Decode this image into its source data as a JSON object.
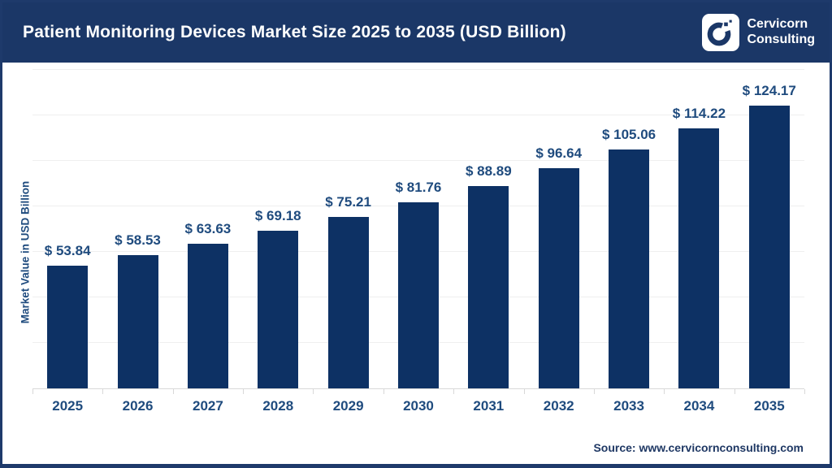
{
  "header": {
    "title": "Patient Monitoring Devices Market Size 2025 to 2035 (USD Billion)",
    "brand": {
      "line1": "Cervicorn",
      "line2": "Consulting"
    }
  },
  "chart_data": {
    "type": "bar",
    "title": "Patient Monitoring Devices Market Size 2025 to 2035 (USD Billion)",
    "categories": [
      "2025",
      "2026",
      "2027",
      "2028",
      "2029",
      "2030",
      "2031",
      "2032",
      "2033",
      "2034",
      "2035"
    ],
    "values": [
      53.84,
      58.53,
      63.63,
      69.18,
      75.21,
      81.76,
      88.89,
      96.64,
      105.06,
      114.22,
      124.17
    ],
    "value_labels": [
      "$ 53.84",
      "$ 58.53",
      "$ 63.63",
      "$ 69.18",
      "$ 75.21",
      "$ 81.76",
      "$ 88.89",
      "$ 96.64",
      "$ 105.06",
      "$ 114.22",
      "$ 124.17"
    ],
    "value_prefix": "$ ",
    "xlabel": "",
    "ylabel": "Market Value in USD Billion",
    "ylim": [
      0,
      140
    ],
    "gridline_step": 20,
    "grid": true,
    "legend": false,
    "bar_color": "#0D3164",
    "label_color": "#1F4B7E"
  },
  "footer": {
    "source": "Source: www.cervicornconsulting.com"
  },
  "colors": {
    "header_bg": "#1B3767",
    "frame_border": "#1E3A6B",
    "bar": "#0D3164",
    "label_text": "#1F4B7E",
    "gridline": "#EFEFEF",
    "axis": "#D8D8D8",
    "title_text": "#FFFFFF"
  }
}
